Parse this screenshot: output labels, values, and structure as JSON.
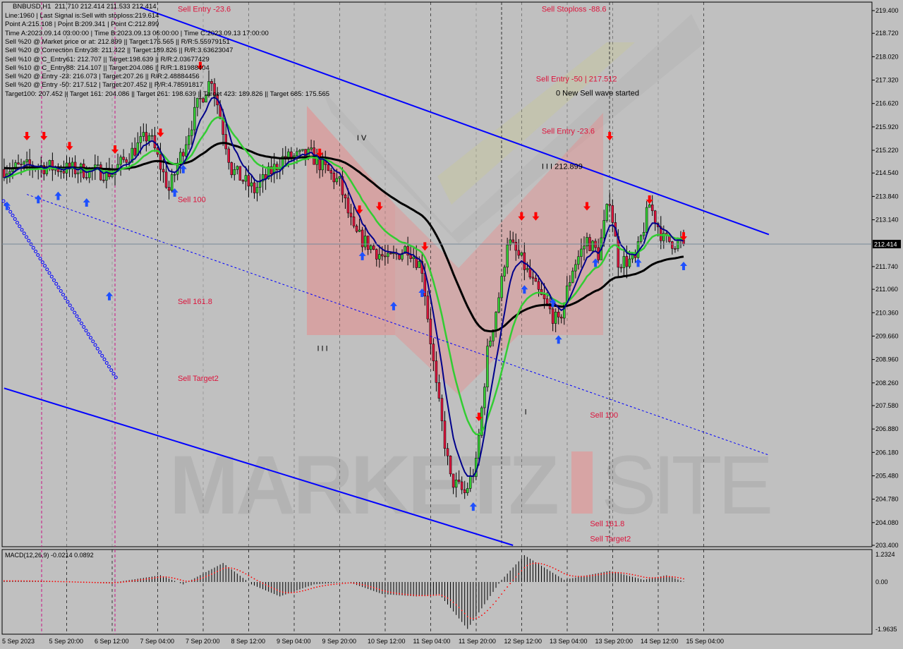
{
  "window": {
    "symbol": "BNBUSD,H1",
    "ohlc": "211.710 212.414 211.533 212.414"
  },
  "info_lines": [
    "Line:1960 | Last Signal is:Sell with stoploss:219.614",
    "Point A:215.108 | Point B:209.341 | Point C:212.899",
    "Time A:2023.09.14 03:00:00 | Time B:2023.09.13 06:00:00 | Time C:2023.09.13 17:00:00",
    "Sell %20 @ Market price or at: 212.899 || Target:175.565 || R/R:5.55979151",
    "Sell %20 @ Correction Entry38: 211.422 || Target:189.826 || R/R:3.63623047",
    "Sell %10 @ C_Entry61: 212.707 || Target:198.639 || R/R:2.03677429",
    "Sell %10 @ C_Entry88: 214.107 || Target:204.086 || R/R:1.81988404",
    "Sell %20 @ Entry -23: 216.073 | Target:207.26 || R/R:2.48884456",
    "Sell %20 @ Entry -50: 217.512 | Target:207.452 || R/R:4.78591817",
    "Target100: 207.452 || Target 161: 204.086 || Target 261: 198.639 || Target 423: 189.826 || Target 685: 175.565"
  ],
  "annotations": [
    {
      "text": "Sell Entry -23.6",
      "time": "2023-09-07 22:00",
      "price": 219.5,
      "color": "#dc143c"
    },
    {
      "text": "Sell Stoploss -88.6",
      "time": "2023-09-13 06:00",
      "price": 219.45,
      "color": "#dc143c"
    },
    {
      "text": "Sell Entry -50 | 217.512",
      "time": "2023-09-13 04:00",
      "price": 217.3,
      "color": "#dc143c"
    },
    {
      "text": "0 New Sell wave started",
      "time": "2023-09-13 11:00",
      "price": 217.07,
      "color": "#000000"
    },
    {
      "text": "Sell Entry -23.6",
      "time": "2023-09-13 06:00",
      "price": 215.8,
      "color": "#dc143c"
    },
    {
      "text": "I I I 212.899",
      "time": "2023-09-13 06:00",
      "price": 214.75,
      "color": "#000000"
    },
    {
      "text": "I V",
      "time": "2023-09-10 13:00",
      "price": 215.6,
      "color": "#000000"
    },
    {
      "text": "Sell 100",
      "time": "2023-09-07 22:00",
      "price": 213.75,
      "color": "#dc143c"
    },
    {
      "text": "Sell 161.8",
      "time": "2023-09-07 22:00",
      "price": 210.7,
      "color": "#dc143c"
    },
    {
      "text": "I I I",
      "time": "2023-09-09 23:00",
      "price": 209.3,
      "color": "#000000"
    },
    {
      "text": "Sell Target2",
      "time": "2023-09-07 22:00",
      "price": 208.4,
      "color": "#dc143c"
    },
    {
      "text": "I",
      "time": "2023-09-13 00:00",
      "price": 207.4,
      "color": "#000000"
    },
    {
      "text": "Sell 100",
      "time": "2023-09-13 23:00",
      "price": 207.3,
      "color": "#dc143c"
    },
    {
      "text": "Sell 161.8",
      "time": "2023-09-13 23:00",
      "price": 203.95,
      "color": "#dc143c"
    },
    {
      "text": "Sell Target2",
      "time": "2023-09-13 23:00",
      "price": 203.75,
      "color": "#dc143c"
    }
  ],
  "watermark": "MARKETZ SITE",
  "colors": {
    "background": "#c0c0c0",
    "channel": "#0000ff",
    "ma_long": "#000000",
    "ma_mid": "#32cd32",
    "ma_fast": "#00008b",
    "bull_candle": "#32cd32",
    "bear_candle": "#dc143c",
    "sell_arrow": "#ff0000",
    "buy_arrow": "#1e50ff",
    "macd_hist": "#000000",
    "macd_signal": "#ff0000",
    "current_price_tag": "#000000"
  },
  "chart_data": [
    {
      "type": "candlestick",
      "title": "BNBUSD,H1",
      "current_price": 212.414,
      "y_ticks": [
        "219.400",
        "218.720",
        "218.020",
        "217.320",
        "216.620",
        "215.920",
        "215.220",
        "214.540",
        "213.840",
        "213.140",
        "211.740",
        "211.060",
        "210.360",
        "209.660",
        "208.960",
        "208.260",
        "207.580",
        "206.880",
        "206.180",
        "205.480",
        "204.780",
        "204.080",
        "203.400"
      ],
      "ylim": [
        203.4,
        219.4
      ],
      "x_ticks": [
        "5 Sep 2023",
        "5 Sep 20:00",
        "6 Sep 12:00",
        "7 Sep 04:00",
        "7 Sep 20:00",
        "8 Sep 12:00",
        "9 Sep 04:00",
        "9 Sep 20:00",
        "10 Sep 12:00",
        "11 Sep 04:00",
        "11 Sep 20:00",
        "12 Sep 12:00",
        "13 Sep 04:00",
        "13 Sep 20:00",
        "14 Sep 12:00",
        "15 Sep 04:00"
      ],
      "close_path": [
        [
          "2023-09-04 23:00",
          214.65
        ],
        [
          "2023-09-05 10:00",
          214.76
        ],
        [
          "2023-09-05 22:00",
          214.65
        ],
        [
          "2023-09-06 13:00",
          214.55
        ],
        [
          "2023-09-07 02:00",
          215.71
        ],
        [
          "2023-09-07 09:00",
          214.02
        ],
        [
          "2023-09-07 19:00",
          216.55
        ],
        [
          "2023-09-08 00:00",
          217.4
        ],
        [
          "2023-09-08 07:00",
          214.65
        ],
        [
          "2023-09-08 15:00",
          214.02
        ],
        [
          "2023-09-09 01:00",
          214.97
        ],
        [
          "2023-09-09 11:00",
          215.07
        ],
        [
          "2023-09-09 21:00",
          214.23
        ],
        [
          "2023-09-10 02:00",
          212.75
        ],
        [
          "2023-09-10 14:00",
          211.91
        ],
        [
          "2023-09-10 21:00",
          212.33
        ],
        [
          "2023-09-11 02:00",
          211.7
        ],
        [
          "2023-09-11 07:00",
          208.11
        ],
        [
          "2023-09-11 12:00",
          205.37
        ],
        [
          "2023-09-11 17:00",
          204.95
        ],
        [
          "2023-09-11 21:00",
          205.79
        ],
        [
          "2023-09-12 01:00",
          209.17
        ],
        [
          "2023-09-12 06:00",
          211.28
        ],
        [
          "2023-09-12 08:00",
          212.54
        ],
        [
          "2023-09-12 13:00",
          211.91
        ],
        [
          "2023-09-12 18:00",
          211.07
        ],
        [
          "2023-09-13 02:00",
          210.01
        ],
        [
          "2023-09-13 07:00",
          211.7
        ],
        [
          "2023-09-13 12:00",
          212.54
        ],
        [
          "2023-09-13 16:00",
          212.12
        ],
        [
          "2023-09-13 20:00",
          213.8
        ],
        [
          "2023-09-13 23:00",
          211.91
        ],
        [
          "2023-09-14 05:00",
          211.91
        ],
        [
          "2023-09-14 10:00",
          213.6
        ],
        [
          "2023-09-14 15:00",
          212.54
        ],
        [
          "2023-09-14 22:00",
          212.414
        ]
      ],
      "trendlines": [
        {
          "style": "solid",
          "from": [
            "2023-09-06 23:00",
            219.5
          ],
          "to": [
            "2023-09-16 04:00",
            212.7
          ]
        },
        {
          "style": "solid",
          "from": [
            "2023-09-04 23:00",
            208.1
          ],
          "to": [
            "2023-09-12 10:00",
            203.4
          ]
        },
        {
          "style": "dotted",
          "from": [
            "2023-09-05 07:00",
            213.9
          ],
          "to": [
            "2023-09-16 04:00",
            206.1
          ]
        }
      ],
      "sell_signals": [
        [
          "2023-09-05 07:00",
          215.6
        ],
        [
          "2023-09-05 13:00",
          215.6
        ],
        [
          "2023-09-05 22:00",
          215.3
        ],
        [
          "2023-09-06 14:00",
          215.2
        ],
        [
          "2023-09-07 06:00",
          215.7
        ],
        [
          "2023-09-07 20:00",
          217.7
        ],
        [
          "2023-09-09 14:00",
          215.1
        ],
        [
          "2023-09-10 04:00",
          213.4
        ],
        [
          "2023-09-10 11:00",
          213.5
        ],
        [
          "2023-09-11 03:00",
          212.3
        ],
        [
          "2023-09-11 22:00",
          207.2
        ],
        [
          "2023-09-12 13:00",
          213.2
        ],
        [
          "2023-09-12 18:00",
          213.2
        ],
        [
          "2023-09-13 12:00",
          213.5
        ],
        [
          "2023-09-13 20:00",
          215.6
        ],
        [
          "2023-09-14 10:00",
          213.7
        ],
        [
          "2023-09-14 22:00",
          212.6
        ]
      ],
      "buy_signals": [
        [
          "2023-09-05 00:00",
          213.6
        ],
        [
          "2023-09-05 11:00",
          213.8
        ],
        [
          "2023-09-05 18:00",
          213.9
        ],
        [
          "2023-09-06 04:00",
          213.7
        ],
        [
          "2023-09-06 12:00",
          210.9
        ],
        [
          "2023-09-07 11:00",
          214.0
        ],
        [
          "2023-09-07 14:00",
          214.7
        ],
        [
          "2023-09-10 05:00",
          212.1
        ],
        [
          "2023-09-10 16:00",
          210.6
        ],
        [
          "2023-09-11 02:00",
          211.0
        ],
        [
          "2023-09-11 20:00",
          204.6
        ],
        [
          "2023-09-12 14:00",
          211.1
        ],
        [
          "2023-09-13 00:00",
          210.7
        ],
        [
          "2023-09-13 02:00",
          209.6
        ],
        [
          "2023-09-13 15:00",
          211.9
        ],
        [
          "2023-09-14 06:00",
          211.9
        ],
        [
          "2023-09-14 22:00",
          211.8
        ]
      ]
    },
    {
      "type": "bar",
      "title": "MACD(12,26,9)",
      "values_label": "-0.0214 0.0892",
      "y_ticks": [
        "1.2324",
        "0.00",
        "-1.9635"
      ],
      "ylim": [
        -1.9635,
        1.2324
      ],
      "histogram_path": [
        [
          "2023-09-05 04:00",
          0.05
        ],
        [
          "2023-09-06 12:00",
          -0.05
        ],
        [
          "2023-09-07 06:00",
          0.3
        ],
        [
          "2023-09-07 14:00",
          -0.1
        ],
        [
          "2023-09-08 04:00",
          0.85
        ],
        [
          "2023-09-08 14:00",
          -0.1
        ],
        [
          "2023-09-09 00:00",
          -0.6
        ],
        [
          "2023-09-09 12:00",
          -0.1
        ],
        [
          "2023-09-10 00:00",
          0.0
        ],
        [
          "2023-09-10 12:00",
          -0.5
        ],
        [
          "2023-09-11 00:00",
          -0.6
        ],
        [
          "2023-09-11 08:00",
          -0.5
        ],
        [
          "2023-09-11 18:00",
          -1.95
        ],
        [
          "2023-09-12 06:00",
          0.1
        ],
        [
          "2023-09-12 14:00",
          1.2
        ],
        [
          "2023-09-13 04:00",
          0.1
        ],
        [
          "2023-09-13 20:00",
          0.5
        ],
        [
          "2023-09-14 08:00",
          0.1
        ],
        [
          "2023-09-14 16:00",
          0.3
        ],
        [
          "2023-09-14 22:00",
          0.02
        ]
      ]
    }
  ]
}
